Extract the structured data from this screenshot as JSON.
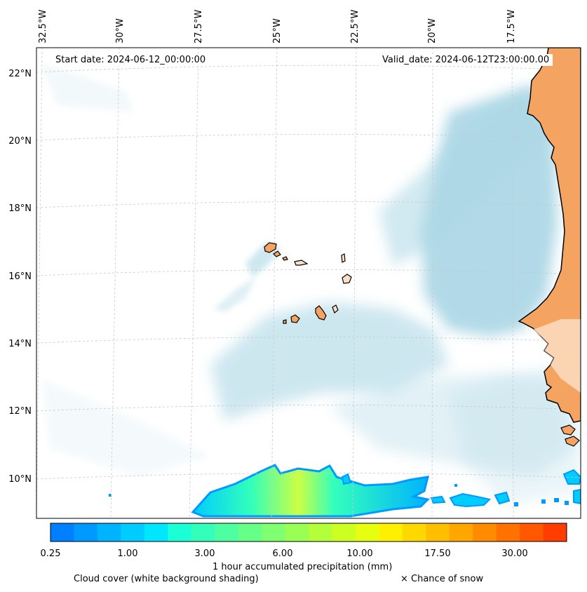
{
  "map": {
    "start_date": "Start date: 2024-06-12_00:00:00",
    "valid_date": "Valid_date: 2024-06-12T23:00:00.00",
    "lon_labels": [
      "32.5°W",
      "30°W",
      "27.5°W",
      "25°W",
      "22.5°W",
      "20°W",
      "17.5°W"
    ],
    "lat_labels": [
      "22°N",
      "20°N",
      "18°N",
      "16°N",
      "14°N",
      "12°N",
      "10°N"
    ],
    "colors": {
      "land": "#f4a460",
      "cloud": "#add8e6",
      "ocean": "#ffffff",
      "coastline": "#000000",
      "grid": "#c8c8c8"
    }
  },
  "colorbar": {
    "label": "1 hour accumulated precipitation (mm)",
    "tick_labels": [
      "0.25",
      "1.00",
      "3.00",
      "6.00",
      "10.00",
      "17.50",
      "30.00"
    ],
    "colors": [
      "#0080ff",
      "#0099ff",
      "#00b3ff",
      "#00ccff",
      "#00e6ff",
      "#1affd5",
      "#33ffbb",
      "#4dffa0",
      "#66ff88",
      "#80ff70",
      "#99ff55",
      "#b3ff3a",
      "#ccff22",
      "#e6ff10",
      "#fff000",
      "#ffd800",
      "#ffbf00",
      "#ffa600",
      "#ff8c00",
      "#ff7200",
      "#ff5800",
      "#ff3d00"
    ]
  },
  "legend": {
    "cloud_cover": "Cloud cover (white background shading)",
    "snow": "× Chance of snow"
  }
}
